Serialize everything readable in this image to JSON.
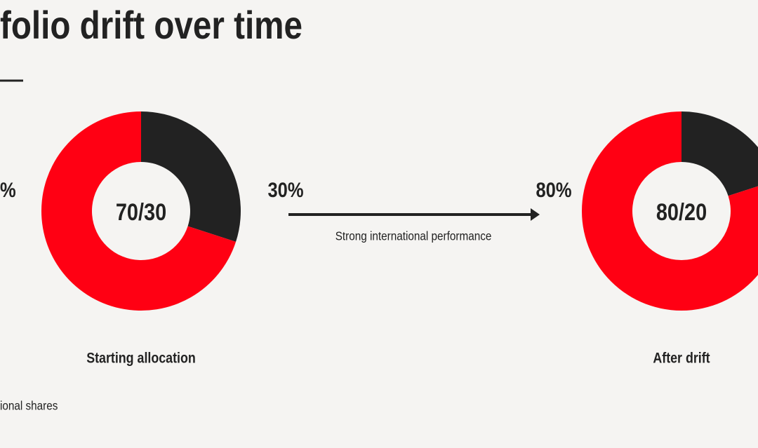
{
  "header": {
    "title": "folio drift over time"
  },
  "annotations": {
    "left_fragment": "%",
    "arrow_label": "Strong international performance",
    "footnote": "ional shares"
  },
  "chart_data": [
    {
      "type": "pie",
      "donut": true,
      "center_label": "70/30",
      "caption": "Starting allocation",
      "values": [
        30,
        70
      ],
      "colors": [
        "#222222",
        "#ff0013"
      ],
      "value_labels": [
        "30%",
        null
      ]
    },
    {
      "type": "pie",
      "donut": true,
      "center_label": "80/20",
      "caption": "After drift",
      "values": [
        20,
        80
      ],
      "colors": [
        "#222222",
        "#ff0013"
      ],
      "value_labels": [
        null,
        "80%"
      ]
    }
  ]
}
